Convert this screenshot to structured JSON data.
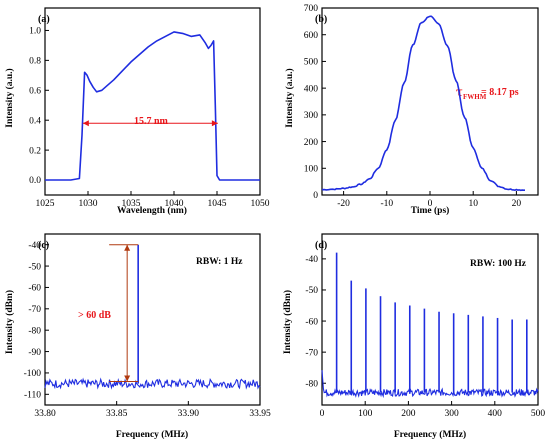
{
  "colors": {
    "trace": "#1f2de0",
    "annotation_red": "#e8161b",
    "annotation_brown": "#b03a10"
  },
  "chart_data": [
    {
      "id": "a",
      "type": "line",
      "panel_label": "(a)",
      "xlabel": "Wavelength (nm)",
      "ylabel": "Intensity (a.u.)",
      "xlim": [
        1025,
        1050
      ],
      "ylim": [
        -0.1,
        1.15
      ],
      "xticks": [
        1025,
        1030,
        1035,
        1040,
        1045,
        1050
      ],
      "yticks": [
        0.0,
        0.2,
        0.4,
        0.6,
        0.8,
        1.0
      ],
      "ytick_labels": [
        "0.0",
        "0.2",
        "0.4",
        "0.6",
        "0.8",
        "1.0"
      ],
      "x": [
        1025,
        1028,
        1029.0,
        1029.3,
        1029.6,
        1029.9,
        1030.2,
        1030.6,
        1031.0,
        1031.6,
        1032.2,
        1033,
        1034,
        1035,
        1036,
        1037,
        1038,
        1039,
        1040,
        1041,
        1042,
        1043,
        1043.6,
        1044.0,
        1044.3,
        1044.6,
        1044.8,
        1045.0,
        1045.3,
        1046,
        1050
      ],
      "y": [
        0.0,
        0.0,
        0.01,
        0.3,
        0.72,
        0.7,
        0.66,
        0.62,
        0.59,
        0.6,
        0.63,
        0.67,
        0.73,
        0.79,
        0.84,
        0.89,
        0.93,
        0.96,
        0.99,
        0.98,
        0.96,
        0.97,
        0.92,
        0.88,
        0.9,
        0.93,
        0.5,
        0.03,
        0.0,
        0.0,
        0.0
      ],
      "annotation": {
        "text": "15.7 nm",
        "x_start": 1029.4,
        "x_end": 1045.1,
        "y": 0.38
      }
    },
    {
      "id": "b",
      "type": "line",
      "panel_label": "(b)",
      "xlabel": "Time (ps)",
      "ylabel": "Intensity (a.u.)",
      "xlim": [
        -25,
        25
      ],
      "ylim": [
        0,
        700
      ],
      "xticks": [
        -20,
        -10,
        0,
        10,
        20
      ],
      "yticks": [
        0,
        100,
        200,
        300,
        400,
        500,
        600,
        700
      ],
      "ytick_labels": [
        "0",
        "100",
        "200",
        "300",
        "400",
        "500",
        "600",
        "700"
      ],
      "x": [
        -25,
        -22,
        -20,
        -18,
        -16,
        -14,
        -12,
        -10,
        -8,
        -6,
        -4,
        -2,
        0,
        2,
        4,
        6,
        8,
        10,
        12,
        14,
        16,
        18,
        20,
        22
      ],
      "y": [
        20,
        22,
        25,
        30,
        40,
        60,
        100,
        170,
        280,
        420,
        560,
        645,
        670,
        640,
        560,
        430,
        290,
        175,
        100,
        55,
        32,
        22,
        20,
        18
      ],
      "annotation": {
        "tau": "τ",
        "subscript": "FWHM",
        "value_text": "= 8.17 ps"
      }
    },
    {
      "id": "c",
      "type": "line",
      "panel_label": "(c)",
      "xlabel": "Frequency (MHz)",
      "ylabel": "Intensity (dBm)",
      "xlim": [
        33.8,
        33.95
      ],
      "ylim": [
        -115,
        -35
      ],
      "xticks": [
        33.8,
        33.85,
        33.9,
        33.95
      ],
      "xtick_labels": [
        "33.80",
        "33.85",
        "33.90",
        "33.95"
      ],
      "yticks": [
        -110,
        -100,
        -90,
        -80,
        -70,
        -60,
        -50,
        -40
      ],
      "ytick_labels": [
        "-110",
        "-100",
        "-90",
        "-80",
        "-70",
        "-60",
        "-50",
        "-40"
      ],
      "noise_floor": -105,
      "peak": {
        "x": 33.865,
        "y": -40
      },
      "note": "RBW: 1 Hz",
      "annotation": {
        "text": "> 60 dB",
        "y_top": -40,
        "y_bottom": -104
      }
    },
    {
      "id": "d",
      "type": "line",
      "panel_label": "(d)",
      "xlabel": "Frequency (MHz)",
      "ylabel": "Intensity (dBm)",
      "xlim": [
        0,
        500
      ],
      "ylim": [
        -87,
        -32
      ],
      "xticks": [
        0,
        100,
        200,
        300,
        400,
        500
      ],
      "yticks": [
        -80,
        -70,
        -60,
        -50,
        -40
      ],
      "ytick_labels": [
        "-80",
        "-70",
        "-60",
        "-50",
        "-40"
      ],
      "noise_floor": -83,
      "peaks_x": [
        33.86,
        67.73,
        101.59,
        135.46,
        169.32,
        203.18,
        237.05,
        270.91,
        304.78,
        338.64,
        372.51,
        406.37,
        440.23,
        474.1
      ],
      "peaks_y": [
        -38,
        -47,
        -49.5,
        -52,
        -54,
        -55,
        -56,
        -57,
        -57.5,
        -58,
        -58.5,
        -59,
        -59.5,
        -59.5
      ],
      "note": "RBW: 100 Hz"
    }
  ]
}
